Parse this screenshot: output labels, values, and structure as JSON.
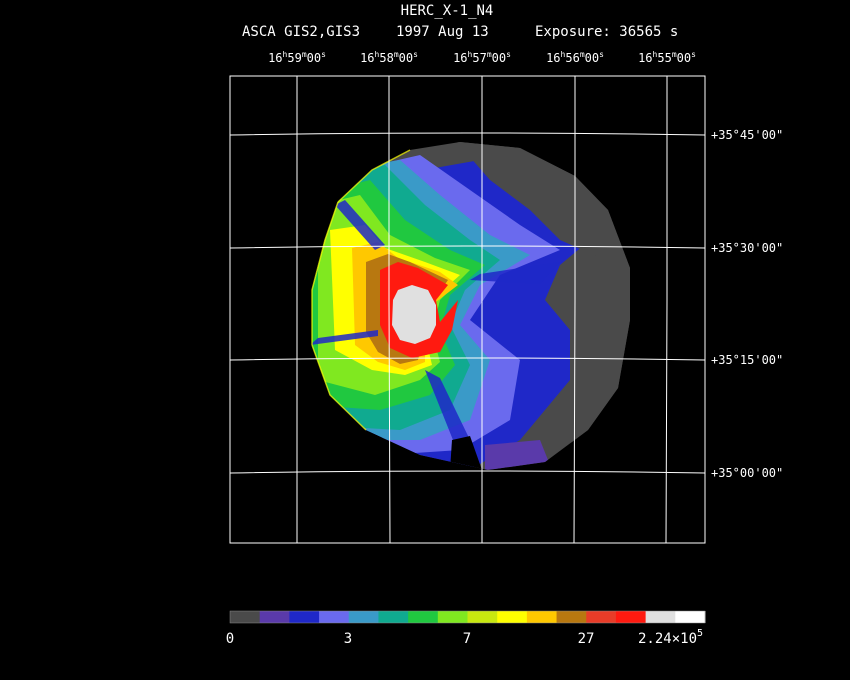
{
  "chart_data": {
    "type": "heatmap",
    "title": "HERC_X-1_N4",
    "subtitle": {
      "instrument": "ASCA GIS2,GIS3",
      "date": "1997 Aug 13",
      "exposure": "Exposure: 36565 s"
    },
    "x_axis": {
      "coordinate": "right ascension",
      "ticks": [
        {
          "h": "16",
          "m": "59",
          "s": "00"
        },
        {
          "h": "16",
          "m": "58",
          "s": "00"
        },
        {
          "h": "16",
          "m": "57",
          "s": "00"
        },
        {
          "h": "16",
          "m": "56",
          "s": "00"
        },
        {
          "h": "16",
          "m": "55",
          "s": "00"
        }
      ],
      "tick_labels": [
        "16h59m00s",
        "16h58m00s",
        "16h57m00s",
        "16h56m00s",
        "16h55m00s"
      ]
    },
    "y_axis": {
      "coordinate": "declination",
      "tick_labels": [
        "+35°45'00\"",
        "+35°30'00\"",
        "+35°15'00\"",
        "+35°00'00\""
      ]
    },
    "colorbar": {
      "colors": [
        "#4a4a4a",
        "#5a3aaa",
        "#1f28c8",
        "#6a6aee",
        "#3a9ac8",
        "#10aa90",
        "#20c840",
        "#80e820",
        "#c8e810",
        "#ffff00",
        "#ffc800",
        "#b87810",
        "#e83c28",
        "#ff1a10",
        "#e0e0e0",
        "#ffffff"
      ],
      "labels": [
        "0",
        "3",
        "7",
        "27"
      ],
      "max_label_mantissa": "2.24×10",
      "max_label_exponent": "5"
    },
    "image_description_levels": "counts per pixel, bright source at center-left, radial streaks",
    "grid": true
  }
}
